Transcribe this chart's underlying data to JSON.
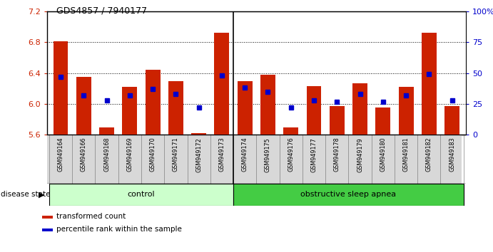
{
  "title": "GDS4857 / 7940177",
  "samples": [
    "GSM949164",
    "GSM949166",
    "GSM949168",
    "GSM949169",
    "GSM949170",
    "GSM949171",
    "GSM949172",
    "GSM949173",
    "GSM949174",
    "GSM949175",
    "GSM949176",
    "GSM949177",
    "GSM949178",
    "GSM949179",
    "GSM949180",
    "GSM949181",
    "GSM949182",
    "GSM949183"
  ],
  "red_values": [
    6.81,
    6.35,
    5.7,
    6.22,
    6.44,
    6.3,
    5.62,
    6.92,
    6.3,
    6.38,
    5.7,
    6.23,
    5.97,
    6.27,
    5.95,
    6.22,
    6.92,
    5.97
  ],
  "blue_values": [
    47,
    32,
    28,
    32,
    37,
    33,
    22,
    48,
    38,
    35,
    22,
    28,
    27,
    33,
    27,
    32,
    49,
    28
  ],
  "ymin": 5.6,
  "ymax": 7.2,
  "yright_min": 0,
  "yright_max": 100,
  "yticks_left": [
    5.6,
    6.0,
    6.4,
    6.8,
    7.2
  ],
  "yticks_right": [
    0,
    25,
    50,
    75,
    100
  ],
  "control_count": 8,
  "osa_count": 10,
  "bar_color": "#cc2200",
  "dot_color": "#0000cc",
  "control_fill": "#ccffcc",
  "osa_fill": "#44cc44",
  "label_fill": "#d8d8d8",
  "legend_red_label": "transformed count",
  "legend_blue_label": "percentile rank within the sample",
  "disease_state_label": "disease state",
  "control_label": "control",
  "osa_label": "obstructive sleep apnea"
}
